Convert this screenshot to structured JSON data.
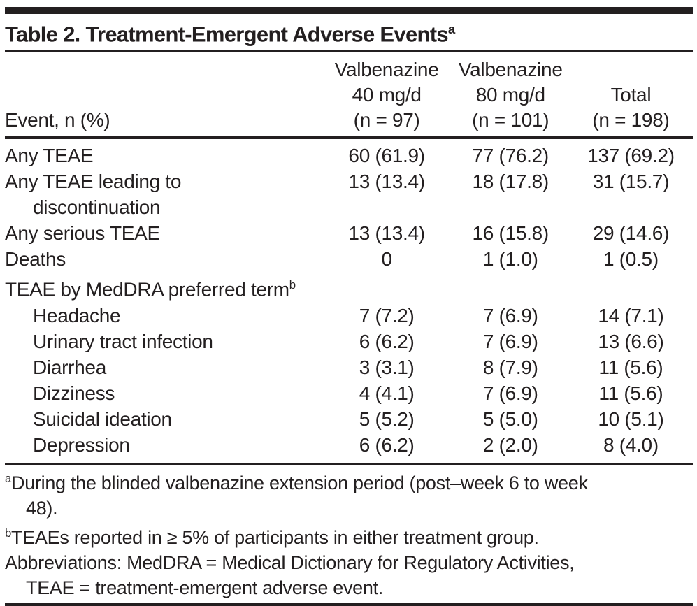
{
  "page": {
    "background_color": "#ffffff",
    "text_color": "#231f20",
    "rule_color": "#231f20"
  },
  "table": {
    "title": {
      "text": "Table 2. Treatment-Emergent Adverse Events",
      "superscript": "a"
    },
    "header": {
      "row_label_column": "Event, n (%)",
      "data_columns": [
        {
          "lines": [
            "Valbenazine",
            "40 mg/d",
            "(n = 97)"
          ]
        },
        {
          "lines": [
            "Valbenazine",
            "80 mg/d",
            "(n = 101)"
          ]
        },
        {
          "lines": [
            "Total",
            "(n = 198)"
          ]
        }
      ]
    },
    "rows": [
      {
        "label_lines": [
          "Any TEAE"
        ],
        "superscript": "",
        "indent": 0,
        "values": [
          "60 (61.9)",
          "77 (76.2)",
          "137 (69.2)"
        ]
      },
      {
        "label_lines": [
          "Any TEAE leading to",
          "discontinuation"
        ],
        "superscript": "",
        "indent": 0,
        "values": [
          "13 (13.4)",
          "18 (17.8)",
          "31 (15.7)"
        ]
      },
      {
        "label_lines": [
          "Any serious TEAE"
        ],
        "superscript": "",
        "indent": 0,
        "values": [
          "13 (13.4)",
          "16 (15.8)",
          "29 (14.6)"
        ]
      },
      {
        "label_lines": [
          "Deaths"
        ],
        "superscript": "",
        "indent": 0,
        "values": [
          "0",
          "1 (1.0)",
          "1 (0.5)"
        ]
      },
      {
        "label_lines": [
          "TEAE by MedDRA preferred term"
        ],
        "superscript": "b",
        "indent": 0,
        "values": [
          "",
          "",
          ""
        ]
      },
      {
        "label_lines": [
          "Headache"
        ],
        "superscript": "",
        "indent": 1,
        "values": [
          "7 (7.2)",
          "7 (6.9)",
          "14 (7.1)"
        ]
      },
      {
        "label_lines": [
          "Urinary tract infection"
        ],
        "superscript": "",
        "indent": 1,
        "values": [
          "6 (6.2)",
          "7 (6.9)",
          "13 (6.6)"
        ]
      },
      {
        "label_lines": [
          "Diarrhea"
        ],
        "superscript": "",
        "indent": 1,
        "values": [
          "3 (3.1)",
          "8 (7.9)",
          "11 (5.6)"
        ]
      },
      {
        "label_lines": [
          "Dizziness"
        ],
        "superscript": "",
        "indent": 1,
        "values": [
          "4 (4.1)",
          "7 (6.9)",
          "11 (5.6)"
        ]
      },
      {
        "label_lines": [
          "Suicidal ideation"
        ],
        "superscript": "",
        "indent": 1,
        "values": [
          "5 (5.2)",
          "5 (5.0)",
          "10 (5.1)"
        ]
      },
      {
        "label_lines": [
          "Depression"
        ],
        "superscript": "",
        "indent": 1,
        "values": [
          "6 (6.2)",
          "2 (2.0)",
          "8 (4.0)"
        ]
      }
    ],
    "footnotes": [
      {
        "marker": "a",
        "lines": [
          "During the blinded valbenazine extension period (post–week 6 to week",
          "48)."
        ]
      },
      {
        "marker": "b",
        "lines": [
          "TEAEs reported in ≥ 5% of participants in either treatment group."
        ]
      },
      {
        "marker": "",
        "lines": [
          "Abbreviations: MedDRA = Medical Dictionary for Regulatory Activities,",
          "TEAE = treatment-emergent adverse event."
        ]
      }
    ]
  }
}
